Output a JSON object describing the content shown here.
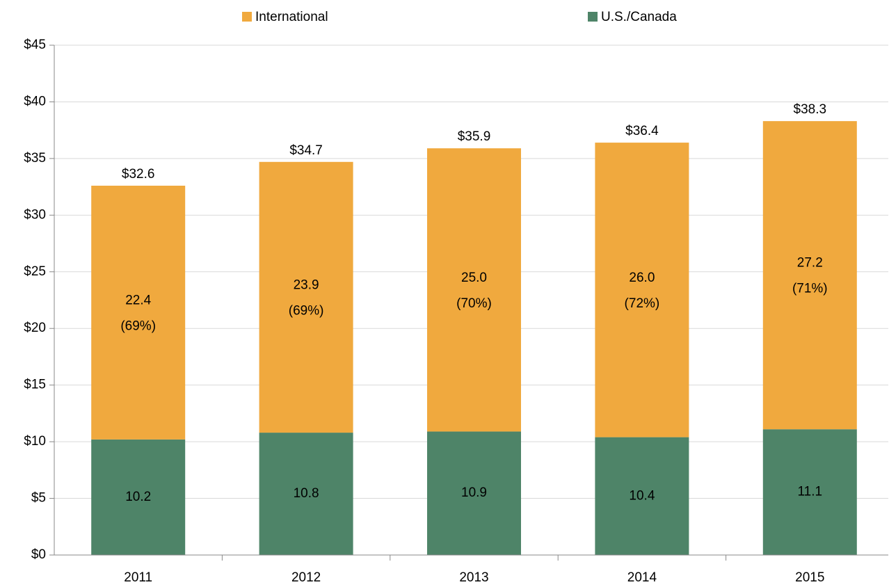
{
  "chart_data": {
    "type": "stacked_bar",
    "categories": [
      "2011",
      "2012",
      "2013",
      "2014",
      "2015"
    ],
    "series": [
      {
        "name": "U.S./Canada",
        "color": "#4e8468",
        "values": [
          10.2,
          10.8,
          10.9,
          10.4,
          11.1
        ]
      },
      {
        "name": "International",
        "color": "#f0a93e",
        "values": [
          22.4,
          23.9,
          25.0,
          26.0,
          27.2
        ],
        "value_labels": [
          "22.4",
          "23.9",
          "25.0",
          "26.0",
          "27.2"
        ],
        "share_labels": [
          "(69%)",
          "(69%)",
          "(70%)",
          "(72%)",
          "(71%)"
        ]
      }
    ],
    "total_labels": [
      "$32.6",
      "$34.7",
      "$35.9",
      "$36.4",
      "$38.3"
    ],
    "legend_order": [
      1,
      0
    ],
    "legend": "top",
    "ylim": [
      0,
      45
    ],
    "yticks": [
      {
        "value": 0,
        "label": "$0"
      },
      {
        "value": 5,
        "label": "$5"
      },
      {
        "value": 10,
        "label": "$10"
      },
      {
        "value": 15,
        "label": "$15"
      },
      {
        "value": 20,
        "label": "$20"
      },
      {
        "value": 25,
        "label": "$25"
      },
      {
        "value": 30,
        "label": "$30"
      },
      {
        "value": 35,
        "label": "$35"
      },
      {
        "value": 40,
        "label": "$40"
      },
      {
        "value": 45,
        "label": "$45"
      }
    ],
    "grid": true
  }
}
